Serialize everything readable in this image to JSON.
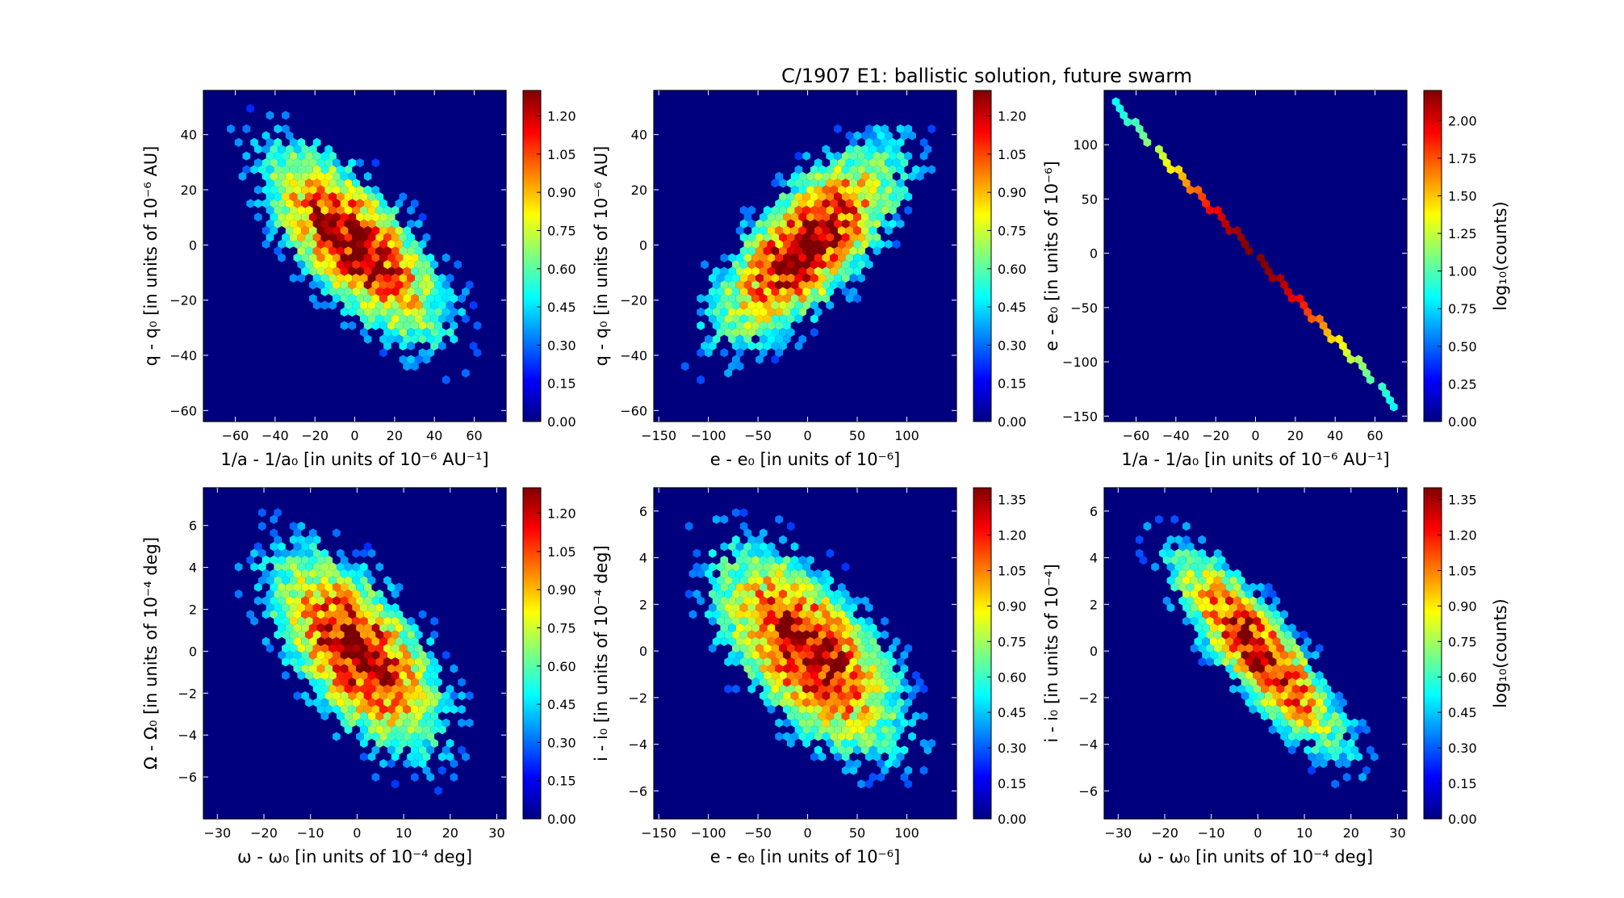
{
  "figure": {
    "title": "C/1907 E1:  ballistic solution, future swarm"
  },
  "colormap": [
    "#00007f",
    "#0000ff",
    "#007fff",
    "#00ffff",
    "#7fff7f",
    "#ffff00",
    "#ff7f00",
    "#ff0000",
    "#7f0000"
  ],
  "chart_data": [
    {
      "type": "heatmap",
      "subtype": "hexbin",
      "xlabel": "1/a - 1/a₀ [in units of 10⁻⁶ AU⁻¹]",
      "ylabel": "q - q₀ [in units of 10⁻⁶ AU]",
      "xlim": [
        -76,
        76
      ],
      "ylim": [
        -64,
        56
      ],
      "xticks": [
        -60,
        -40,
        -20,
        0,
        20,
        40,
        60
      ],
      "xticklabels": [
        "−60",
        "−40",
        "−20",
        "0",
        "20",
        "40",
        "60"
      ],
      "yticks": [
        -60,
        -40,
        -20,
        0,
        20,
        40
      ],
      "yticklabels": [
        "−60",
        "−40",
        "−20",
        "0",
        "20",
        "40"
      ],
      "colorbar": {
        "label": "",
        "ticks": [
          "0.00",
          "0.15",
          "0.30",
          "0.45",
          "0.60",
          "0.75",
          "0.90",
          "1.05",
          "1.20"
        ],
        "max": 1.3
      },
      "distribution": {
        "mean": [
          0,
          0
        ],
        "sd": [
          22,
          17
        ],
        "corr": -0.7,
        "peak": 1.3
      }
    },
    {
      "type": "heatmap",
      "subtype": "hexbin",
      "xlabel": "e - e₀ [in units of 10⁻⁶]",
      "ylabel": "q - q₀ [in units of 10⁻⁶ AU]",
      "xlim": [
        -155,
        150
      ],
      "ylim": [
        -64,
        56
      ],
      "xticks": [
        -150,
        -100,
        -50,
        0,
        50,
        100
      ],
      "xticklabels": [
        "−150",
        "−100",
        "−50",
        "0",
        "50",
        "100"
      ],
      "yticks": [
        -60,
        -40,
        -20,
        0,
        20,
        40
      ],
      "yticklabels": [
        "−60",
        "−40",
        "−20",
        "0",
        "20",
        "40"
      ],
      "colorbar": {
        "label": "",
        "ticks": [
          "0.00",
          "0.15",
          "0.30",
          "0.45",
          "0.60",
          "0.75",
          "0.90",
          "1.05",
          "1.20"
        ],
        "max": 1.3
      },
      "distribution": {
        "mean": [
          0,
          0
        ],
        "sd": [
          45,
          17
        ],
        "corr": 0.7,
        "peak": 1.3
      }
    },
    {
      "type": "heatmap",
      "subtype": "hexbin",
      "xlabel": "1/a - 1/a₀ [in units of 10⁻⁶ AU⁻¹]",
      "ylabel": "e - e₀ [in units of 10⁻⁶]",
      "xlim": [
        -76,
        76
      ],
      "ylim": [
        -155,
        150
      ],
      "xticks": [
        -60,
        -40,
        -20,
        0,
        20,
        40,
        60
      ],
      "xticklabels": [
        "−60",
        "−40",
        "−20",
        "0",
        "20",
        "40",
        "60"
      ],
      "yticks": [
        -150,
        -100,
        -50,
        0,
        50,
        100
      ],
      "yticklabels": [
        "−150",
        "−100",
        "−50",
        "0",
        "50",
        "100"
      ],
      "colorbar": {
        "label": "log₁₀(counts)",
        "ticks": [
          "0.00",
          "0.25",
          "0.50",
          "0.75",
          "1.00",
          "1.25",
          "1.50",
          "1.75",
          "2.00"
        ],
        "max": 2.2
      },
      "line": {
        "from": [
          -72,
          139
        ],
        "to": [
          72,
          -142
        ],
        "peak": 2.2
      }
    },
    {
      "type": "heatmap",
      "subtype": "hexbin",
      "xlabel": "ω - ω₀ [in units of 10⁻⁴ deg]",
      "ylabel": "Ω - Ω₀ [in units of 10⁻⁴ deg]",
      "xlim": [
        -33,
        32
      ],
      "ylim": [
        -8,
        7.8
      ],
      "xticks": [
        -30,
        -20,
        -10,
        0,
        10,
        20,
        30
      ],
      "xticklabels": [
        "−30",
        "−20",
        "−10",
        "0",
        "10",
        "20",
        "30"
      ],
      "yticks": [
        -6,
        -4,
        -2,
        0,
        2,
        4,
        6
      ],
      "yticklabels": [
        "−6",
        "−4",
        "−2",
        "0",
        "2",
        "4",
        "6"
      ],
      "colorbar": {
        "label": "",
        "ticks": [
          "0.00",
          "0.15",
          "0.30",
          "0.45",
          "0.60",
          "0.75",
          "0.90",
          "1.05",
          "1.20"
        ],
        "max": 1.3
      },
      "distribution": {
        "mean": [
          0,
          0
        ],
        "sd": [
          9,
          2.3
        ],
        "corr": -0.6,
        "peak": 1.3
      }
    },
    {
      "type": "heatmap",
      "subtype": "hexbin",
      "xlabel": "e - e₀ [in units of 10⁻⁶]",
      "ylabel": "i - i₀ [in units of 10⁻⁴ deg]",
      "xlim": [
        -155,
        150
      ],
      "ylim": [
        -7.2,
        7
      ],
      "xticks": [
        -150,
        -100,
        -50,
        0,
        50,
        100
      ],
      "xticklabels": [
        "−150",
        "−100",
        "−50",
        "0",
        "50",
        "100"
      ],
      "yticks": [
        -6,
        -4,
        -2,
        0,
        2,
        4,
        6
      ],
      "yticklabels": [
        "−6",
        "−4",
        "−2",
        "0",
        "2",
        "4",
        "6"
      ],
      "colorbar": {
        "label": "",
        "ticks": [
          "0.00",
          "0.15",
          "0.30",
          "0.45",
          "0.60",
          "0.75",
          "0.90",
          "1.05",
          "1.20",
          "1.35"
        ],
        "max": 1.4
      },
      "distribution": {
        "mean": [
          0,
          0
        ],
        "sd": [
          45,
          2.1
        ],
        "corr": -0.6,
        "peak": 1.4
      }
    },
    {
      "type": "heatmap",
      "subtype": "hexbin",
      "xlabel": "ω - ω₀ [in units of 10⁻⁴ deg]",
      "ylabel": "i - i₀ [in units of 10⁻⁴]",
      "xlim": [
        -33,
        32
      ],
      "ylim": [
        -7.2,
        7
      ],
      "xticks": [
        -30,
        -20,
        -10,
        0,
        10,
        20,
        30
      ],
      "xticklabels": [
        "−30",
        "−20",
        "−10",
        "0",
        "10",
        "20",
        "30"
      ],
      "yticks": [
        -6,
        -4,
        -2,
        0,
        2,
        4,
        6
      ],
      "yticklabels": [
        "−6",
        "−4",
        "−2",
        "0",
        "2",
        "4",
        "6"
      ],
      "colorbar": {
        "label": "log₁₀(counts)",
        "ticks": [
          "0.00",
          "0.15",
          "0.30",
          "0.45",
          "0.60",
          "0.75",
          "0.90",
          "1.05",
          "1.20",
          "1.35"
        ],
        "max": 1.4
      },
      "distribution": {
        "mean": [
          0,
          0
        ],
        "sd": [
          9,
          2.1
        ],
        "corr": -0.85,
        "peak": 1.4
      }
    }
  ]
}
